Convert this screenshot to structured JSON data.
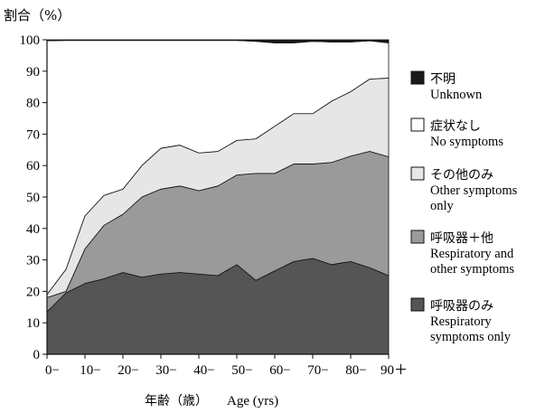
{
  "chart_data": {
    "type": "area",
    "stacked": true,
    "ylabel": "割合（%）",
    "xlabel_jp": "年齢（歳）",
    "xlabel_en": "Age (yrs)",
    "ylim": [
      0,
      100
    ],
    "y_ticks": [
      "0",
      "10",
      "20",
      "30",
      "40",
      "50",
      "60",
      "70",
      "80",
      "90",
      "100"
    ],
    "x_ticks": [
      "0−",
      "10−",
      "20−",
      "30−",
      "40−",
      "50−",
      "60−",
      "70−",
      "80−",
      "90＋"
    ],
    "x_tick_values": [
      0,
      10,
      20,
      30,
      40,
      50,
      60,
      70,
      80,
      90
    ],
    "x": [
      0,
      5,
      10,
      15,
      20,
      25,
      30,
      35,
      40,
      45,
      50,
      55,
      60,
      65,
      70,
      75,
      80,
      85,
      90
    ],
    "series": [
      {
        "name": "呼吸器のみ",
        "name_en": "Respiratory symptoms only",
        "color": "#555555",
        "values": [
          13.5,
          19.5,
          22.5,
          24,
          26,
          24.5,
          25.5,
          26,
          25.5,
          25,
          28.5,
          23.5,
          26.5,
          29.5,
          30.5,
          28.5,
          29.5,
          27.5,
          25
        ]
      },
      {
        "name": "呼吸器＋他",
        "name_en": "Respiratory and other symptoms",
        "color": "#9a9a9a",
        "values": [
          4.5,
          0.5,
          11,
          17,
          18.5,
          25.5,
          27,
          27.5,
          26.5,
          28.5,
          28.5,
          34,
          31,
          31,
          30,
          32.5,
          33.5,
          37,
          37.8
        ]
      },
      {
        "name": "その他のみ",
        "name_en": "Other symptoms only",
        "color": "#e6e6e6",
        "values": [
          1,
          7,
          10.5,
          9.5,
          8,
          10,
          13,
          13,
          12,
          11,
          11,
          11,
          15,
          16,
          16,
          19.5,
          20.5,
          23,
          25
        ]
      },
      {
        "name": "症状なし",
        "name_en": "No symptoms",
        "color": "#ffffff",
        "values": [
          80.7,
          72.8,
          55.8,
          49.3,
          47.3,
          39.8,
          34.3,
          33.3,
          35.8,
          35.3,
          31.8,
          31,
          26.5,
          22.5,
          23,
          18.8,
          15.8,
          12.2,
          11.2
        ]
      },
      {
        "name": "不明",
        "name_en": "Unknown",
        "color": "#1a1a1a",
        "values": [
          0.3,
          0.2,
          0.2,
          0.2,
          0.2,
          0.2,
          0.2,
          0.2,
          0.2,
          0.2,
          0.2,
          0.5,
          1,
          1,
          0.5,
          0.7,
          0.7,
          0.3,
          1.5
        ]
      }
    ],
    "legend": {
      "placement": "right",
      "order_top_to_bottom": [
        4,
        3,
        2,
        1,
        0
      ],
      "entries": [
        {
          "jp": "不明",
          "en": [
            "Unknown"
          ]
        },
        {
          "jp": "症状なし",
          "en": [
            "No symptoms"
          ]
        },
        {
          "jp": "その他のみ",
          "en": [
            "Other symptoms",
            "only"
          ]
        },
        {
          "jp": "呼吸器＋他",
          "en": [
            "Respiratory and",
            "other symptoms"
          ]
        },
        {
          "jp": "呼吸器のみ",
          "en": [
            "Respiratory",
            "symptoms only"
          ]
        }
      ]
    },
    "grid": false
  }
}
